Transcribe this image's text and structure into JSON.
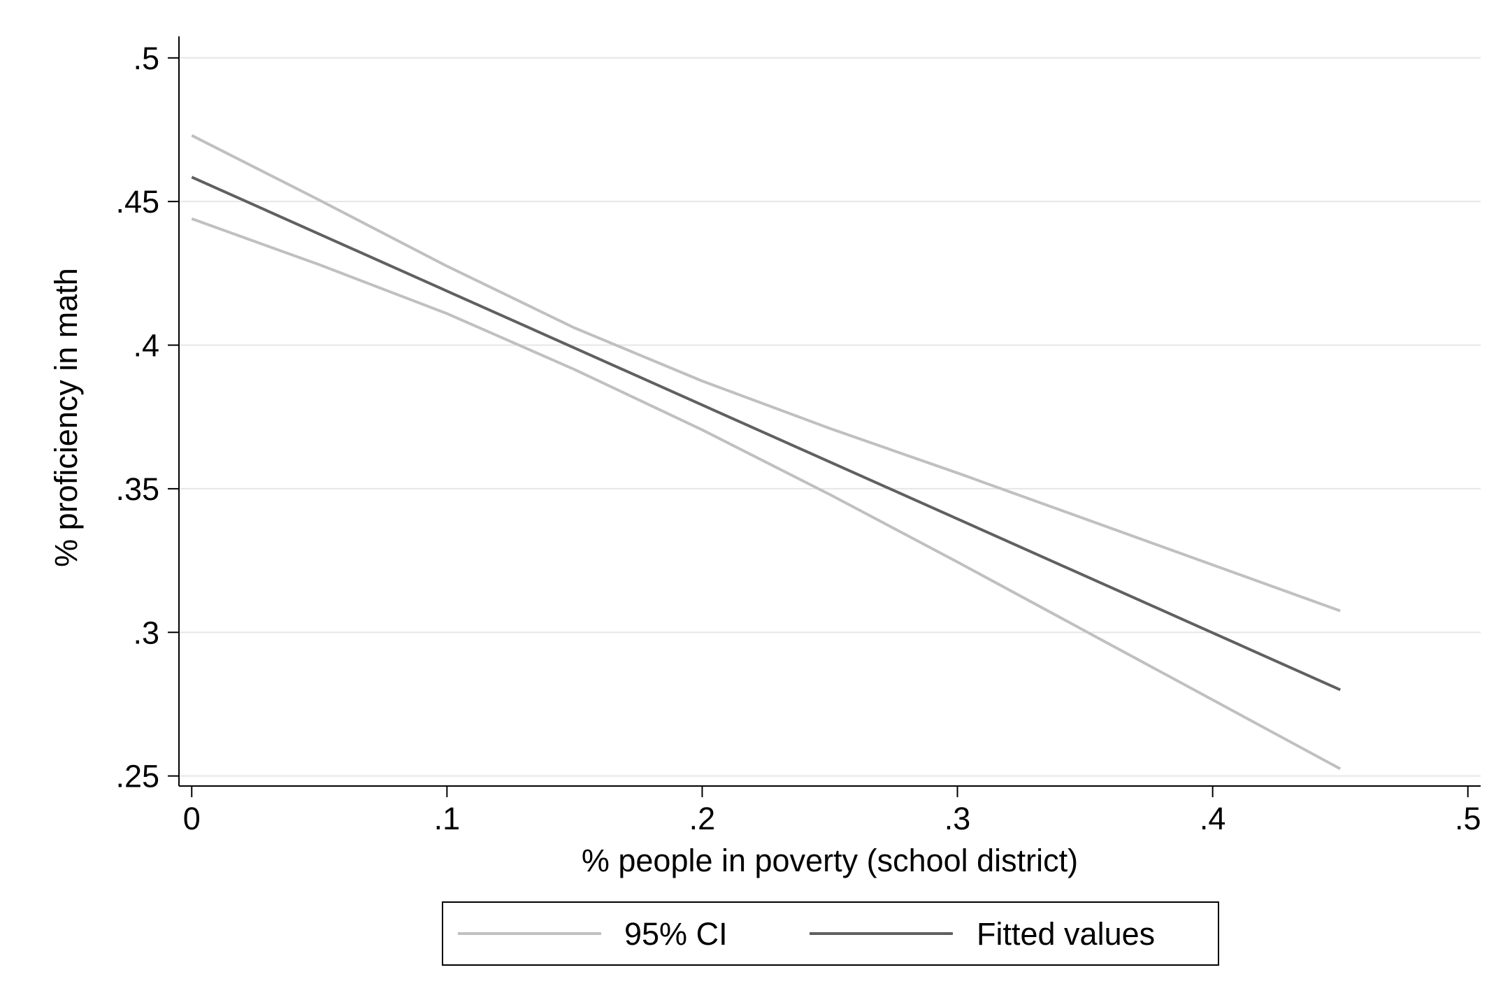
{
  "chart_data": {
    "type": "line",
    "title": "",
    "xlabel": "% people in poverty (school district)",
    "ylabel": "% proficiency in math",
    "xlim": [
      -0.005,
      0.505
    ],
    "ylim": [
      0.2465,
      0.5075
    ],
    "x_ticks": [
      0,
      0.1,
      0.2,
      0.3,
      0.4,
      0.5
    ],
    "x_tick_labels": [
      "0",
      ".1",
      ".2",
      ".3",
      ".4",
      ".5"
    ],
    "y_ticks": [
      0.25,
      0.3,
      0.35,
      0.4,
      0.45,
      0.5
    ],
    "y_tick_labels": [
      ".25",
      ".3",
      ".35",
      ".4",
      ".45",
      ".5"
    ],
    "grid": true,
    "legend_position": "bottom",
    "series": [
      {
        "name": "95% CI",
        "role": "ci_upper",
        "color": "#c0c0c0",
        "x": [
          0,
          0.05,
          0.1,
          0.15,
          0.2,
          0.25,
          0.3,
          0.35,
          0.4,
          0.45
        ],
        "y": [
          0.473,
          0.4505,
          0.4275,
          0.406,
          0.3875,
          0.371,
          0.3555,
          0.3395,
          0.3235,
          0.3075
        ]
      },
      {
        "name": "95% CI",
        "role": "ci_lower",
        "color": "#c0c0c0",
        "x": [
          0,
          0.05,
          0.1,
          0.15,
          0.2,
          0.25,
          0.3,
          0.35,
          0.4,
          0.45
        ],
        "y": [
          0.444,
          0.428,
          0.411,
          0.3915,
          0.3705,
          0.348,
          0.3245,
          0.3005,
          0.2765,
          0.2525
        ]
      },
      {
        "name": "Fitted values",
        "role": "fit",
        "color": "#606060",
        "x": [
          0,
          0.45
        ],
        "y": [
          0.4585,
          0.28
        ]
      }
    ]
  }
}
